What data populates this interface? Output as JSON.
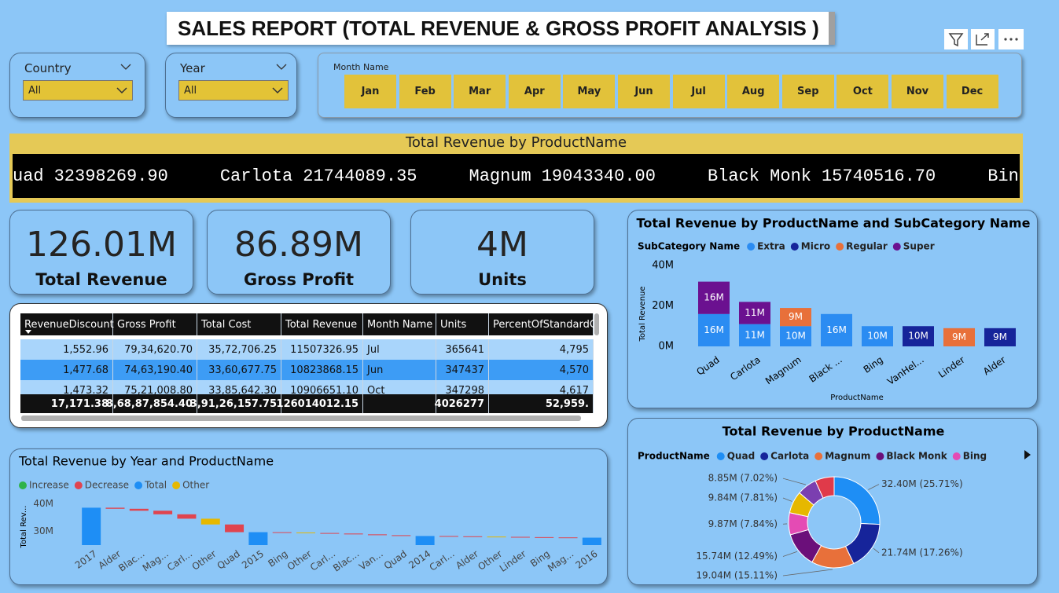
{
  "header": {
    "title": "SALES REPORT (TOTAL REVENUE & GROSS PROFIT ANALYSIS )"
  },
  "slicers": [
    {
      "label": "Country",
      "value": "All"
    },
    {
      "label": "Year",
      "value": "All"
    }
  ],
  "month_slicer": {
    "label": "Month Name",
    "months": [
      "Jan",
      "Feb",
      "Mar",
      "Apr",
      "May",
      "Jun",
      "Jul",
      "Aug",
      "Sep",
      "Oct",
      "Nov",
      "Dec"
    ]
  },
  "ticker": {
    "title": "Total Revenue by ProductName",
    "items": [
      {
        "name": "uad",
        "value": "32398269.90"
      },
      {
        "name": "Carlota",
        "value": "21744089.35"
      },
      {
        "name": "Magnum",
        "value": "19043340.00"
      },
      {
        "name": "Black Monk",
        "value": "15740516.70"
      },
      {
        "name": "Bin"
      }
    ]
  },
  "cards": [
    {
      "value": "126.01M",
      "label": "Total Revenue"
    },
    {
      "value": "86.89M",
      "label": "Gross Profit"
    },
    {
      "value": "4M",
      "label": "Units"
    }
  ],
  "table": {
    "columns": [
      "RevenueDiscount",
      "Gross Profit",
      "Total Cost",
      "Total Revenue",
      "Month Name",
      "Units",
      "PercentOfStandardC"
    ],
    "rows": [
      [
        "1,552.96",
        "79,34,620.70",
        "35,72,706.25",
        "11507326.95",
        "Jul",
        "365641",
        "4,795"
      ],
      [
        "1,477.68",
        "74,63,190.40",
        "33,60,677.75",
        "10823868.15",
        "Jun",
        "347437",
        "4,570"
      ],
      [
        "1,473.32",
        "75,21,008.80",
        "33,85,642.30",
        "10906651.10",
        "Oct",
        "347298",
        "4,617"
      ]
    ],
    "total": [
      "17,171.38",
      "8,68,87,854.40",
      "3,91,26,157.75",
      "126014012.15",
      null,
      "4026277",
      "52,959."
    ]
  },
  "chart_data": [
    {
      "type": "bar",
      "stacked": true,
      "title": "Total Revenue by ProductName and SubCategory Name",
      "legend_title": "SubCategory Name",
      "x_label": "ProductName",
      "y_label": "Total Revenue",
      "categories": [
        "Quad",
        "Carlota",
        "Magnum",
        "Black ...",
        "Bing",
        "VanHel...",
        "Linder",
        "Alder"
      ],
      "series": [
        {
          "name": "Extra",
          "color": "#2b8cf2",
          "values": [
            16,
            11,
            10,
            16,
            10,
            null,
            null,
            null
          ],
          "value_labels": [
            "16M",
            "11M",
            "10M",
            "16M",
            "10M",
            null,
            null,
            null
          ]
        },
        {
          "name": "Micro",
          "color": "#16249a",
          "values": [
            null,
            null,
            null,
            null,
            null,
            10,
            null,
            9
          ],
          "value_labels": [
            null,
            null,
            null,
            null,
            null,
            "10M",
            null,
            "9M"
          ]
        },
        {
          "name": "Regular",
          "color": "#e8703a",
          "values": [
            null,
            null,
            9,
            null,
            null,
            null,
            9,
            null
          ],
          "value_labels": [
            null,
            null,
            "9M",
            null,
            null,
            null,
            "9M",
            null
          ]
        },
        {
          "name": "Super",
          "color": "#6b1190",
          "values": [
            16,
            11,
            null,
            null,
            null,
            null,
            null,
            null
          ],
          "value_labels": [
            "16M",
            "11M",
            null,
            null,
            null,
            null,
            null,
            null
          ]
        }
      ],
      "ylim": [
        0,
        40
      ],
      "yticks": [
        {
          "value": 0,
          "label": "0M"
        },
        {
          "value": 20,
          "label": "20M"
        },
        {
          "value": 40,
          "label": "40M"
        }
      ],
      "grid": false
    },
    {
      "type": "waterfall",
      "title": "Total Revenue by Year and ProductName",
      "y_label": "Total Rev...",
      "categories": [
        "2017",
        "Alder",
        "Blac...",
        "Mag...",
        "Carl...",
        "Other",
        "Quad",
        "2015",
        "Bing",
        "Other",
        "Carl...",
        "Blac...",
        "Van...",
        "Quad",
        "2014",
        "Carl...",
        "Alder",
        "Other",
        "Linder",
        "Bing",
        "Mag...",
        "2016"
      ],
      "series": [
        {
          "name": "Increase",
          "color": "#2fb34a",
          "values": [
            null,
            null,
            null,
            null,
            null,
            null,
            null,
            null,
            null,
            null,
            null,
            null,
            null,
            null,
            null,
            null,
            null,
            null,
            null,
            null,
            null,
            null
          ]
        },
        {
          "name": "Decrease",
          "color": "#e0444f",
          "values": [
            null,
            -0.4,
            -0.7,
            -1.3,
            -1.6,
            null,
            -2.8,
            null,
            -0.1,
            null,
            -0.2,
            -0.3,
            -0.3,
            -0.3,
            null,
            -0.1,
            -0.1,
            null,
            -0.1,
            -0.1,
            -0.1,
            null
          ]
        },
        {
          "name": "Total",
          "color": "#1e8ef5",
          "is_total": true,
          "values": [
            38.6,
            null,
            null,
            null,
            null,
            null,
            null,
            29.7,
            null,
            null,
            null,
            null,
            null,
            null,
            28.3,
            null,
            null,
            null,
            null,
            null,
            null,
            27.7
          ]
        },
        {
          "name": "Other",
          "color": "#e6b800",
          "values": [
            null,
            null,
            null,
            null,
            null,
            -2.1,
            null,
            null,
            null,
            -0.2,
            null,
            null,
            null,
            null,
            null,
            null,
            null,
            -0.1,
            null,
            null,
            null,
            null
          ]
        }
      ],
      "ylim": [
        25,
        43
      ],
      "yticks": [
        {
          "value": 30,
          "label": "30M"
        },
        {
          "value": 40,
          "label": "40M"
        }
      ],
      "grid": false
    },
    {
      "type": "donut",
      "title": "Total Revenue by ProductName",
      "legend_title": "ProductName",
      "categories": [
        "Quad",
        "Carlota",
        "Magnum",
        "Black Monk",
        "Bing",
        null,
        null,
        null
      ],
      "values": [
        32.4,
        21.74,
        19.04,
        15.74,
        9.87,
        9.84,
        8.85,
        8.52
      ],
      "value_labels": [
        "32.40M (25.71%)",
        "21.74M (17.26%)",
        "19.04M (15.11%)",
        "15.74M (12.49%)",
        "9.87M (7.84%)",
        "9.84M (7.81%)",
        "8.85M (7.02%)",
        null
      ],
      "colors": [
        "#1e8ef5",
        "#16249a",
        "#e8703a",
        "#6b0f7a",
        "#e44bb4",
        "#e6b800",
        "#7b3fb0",
        "#e03a4a"
      ]
    }
  ]
}
